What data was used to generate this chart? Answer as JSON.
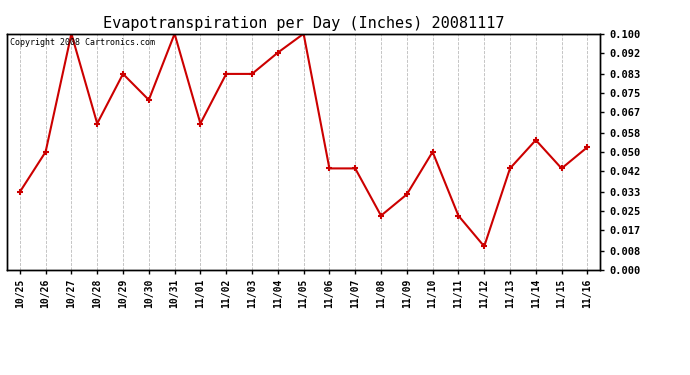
{
  "title": "Evapotranspiration per Day (Inches) 20081117",
  "copyright_text": "Copyright 2008 Cartronics.com",
  "x_labels": [
    "10/25",
    "10/26",
    "10/27",
    "10/28",
    "10/29",
    "10/30",
    "10/31",
    "11/01",
    "11/02",
    "11/03",
    "11/04",
    "11/05",
    "11/06",
    "11/07",
    "11/08",
    "11/09",
    "11/10",
    "11/11",
    "11/12",
    "11/13",
    "11/14",
    "11/15",
    "11/16"
  ],
  "y_values": [
    0.033,
    0.05,
    0.1,
    0.062,
    0.083,
    0.072,
    0.1,
    0.062,
    0.083,
    0.083,
    0.092,
    0.1,
    0.043,
    0.043,
    0.023,
    0.032,
    0.05,
    0.023,
    0.01,
    0.043,
    0.055,
    0.043,
    0.052
  ],
  "y_ticks": [
    0.0,
    0.008,
    0.017,
    0.025,
    0.033,
    0.042,
    0.05,
    0.058,
    0.067,
    0.075,
    0.083,
    0.092,
    0.1
  ],
  "line_color": "#cc0000",
  "marker": "+",
  "marker_size": 5,
  "marker_linewidth": 1.5,
  "line_width": 1.5,
  "background_color": "#ffffff",
  "grid_color": "#bbbbbb",
  "title_fontsize": 11,
  "ylim": [
    0.0,
    0.1
  ]
}
